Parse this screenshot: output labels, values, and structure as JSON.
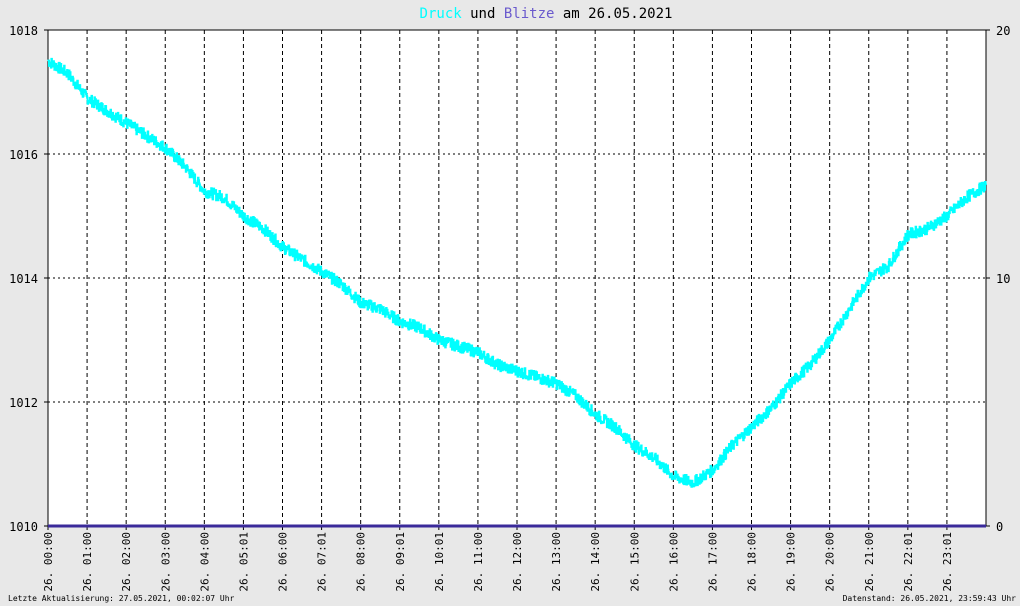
{
  "colors": {
    "background": "#e8e8e8",
    "plot_background": "#ffffff",
    "grid": "#000000",
    "pressure": "#00ffff",
    "lightning": "#3a2a9a",
    "lightning_title": "#6a5acd",
    "text": "#000000"
  },
  "title": {
    "part1": "Druck",
    "part2": " und ",
    "part3": "Blitze",
    "part4": " am 26.05.2021"
  },
  "footer": {
    "left": "Letzte Aktualisierung: 27.05.2021, 00:02:07 Uhr",
    "right": "Datenstand: 26.05.2021, 23:59:43 Uhr"
  },
  "chart_data": {
    "type": "line",
    "grid": true,
    "y_left": {
      "min": 1010,
      "max": 1018,
      "ticks": [
        "1010",
        "1012",
        "1014",
        "1016",
        "1018"
      ]
    },
    "y_right": {
      "min": 0,
      "max": 20,
      "ticks": [
        "0",
        "10",
        "20"
      ]
    },
    "x": {
      "min_hour": 0,
      "max_hour": 24,
      "ticks": [
        {
          "hour": 0.0,
          "label": "26. 00:00"
        },
        {
          "hour": 1.0,
          "label": "26. 01:00"
        },
        {
          "hour": 2.0,
          "label": "26. 02:00"
        },
        {
          "hour": 3.0,
          "label": "26. 03:00"
        },
        {
          "hour": 4.0,
          "label": "26. 04:00"
        },
        {
          "hour": 5.0,
          "label": "26. 05:01"
        },
        {
          "hour": 6.0,
          "label": "26. 06:00"
        },
        {
          "hour": 7.0,
          "label": "26. 07:01"
        },
        {
          "hour": 8.0,
          "label": "26. 08:00"
        },
        {
          "hour": 9.0,
          "label": "26. 09:01"
        },
        {
          "hour": 10.0,
          "label": "26. 10:01"
        },
        {
          "hour": 11.0,
          "label": "26. 11:00"
        },
        {
          "hour": 12.0,
          "label": "26. 12:00"
        },
        {
          "hour": 13.0,
          "label": "26. 13:00"
        },
        {
          "hour": 14.0,
          "label": "26. 14:00"
        },
        {
          "hour": 15.0,
          "label": "26. 15:00"
        },
        {
          "hour": 16.0,
          "label": "26. 16:00"
        },
        {
          "hour": 17.0,
          "label": "26. 17:00"
        },
        {
          "hour": 18.0,
          "label": "26. 18:00"
        },
        {
          "hour": 19.0,
          "label": "26. 19:00"
        },
        {
          "hour": 20.0,
          "label": "26. 20:00"
        },
        {
          "hour": 21.0,
          "label": "26. 21:00"
        },
        {
          "hour": 22.0,
          "label": "26. 22:01"
        },
        {
          "hour": 23.0,
          "label": "26. 23:01"
        }
      ]
    },
    "series": [
      {
        "name": "Druck",
        "axis": "left",
        "x": [
          0.0,
          0.5,
          1.0,
          1.5,
          2.0,
          2.5,
          3.0,
          3.5,
          4.0,
          4.5,
          5.0,
          5.5,
          6.0,
          6.5,
          7.0,
          7.5,
          8.0,
          8.5,
          9.0,
          9.5,
          10.0,
          10.5,
          11.0,
          11.5,
          12.0,
          12.5,
          13.0,
          13.5,
          14.0,
          14.5,
          15.0,
          15.5,
          16.0,
          16.5,
          17.0,
          17.5,
          18.0,
          18.5,
          19.0,
          19.5,
          20.0,
          20.5,
          21.0,
          21.5,
          22.0,
          22.5,
          23.0,
          23.5,
          24.0
        ],
        "values": [
          1017.5,
          1017.3,
          1016.9,
          1016.7,
          1016.5,
          1016.3,
          1016.1,
          1015.8,
          1015.4,
          1015.3,
          1015.0,
          1014.8,
          1014.5,
          1014.3,
          1014.1,
          1013.9,
          1013.6,
          1013.5,
          1013.3,
          1013.2,
          1013.0,
          1012.9,
          1012.8,
          1012.6,
          1012.5,
          1012.4,
          1012.3,
          1012.1,
          1011.8,
          1011.6,
          1011.3,
          1011.1,
          1010.8,
          1010.7,
          1010.9,
          1011.3,
          1011.6,
          1011.9,
          1012.3,
          1012.6,
          1013.0,
          1013.5,
          1014.0,
          1014.2,
          1014.7,
          1014.8,
          1015.0,
          1015.3,
          1015.5
        ]
      },
      {
        "name": "Blitze",
        "axis": "right",
        "x": [
          0,
          24
        ],
        "values": [
          0,
          0
        ]
      }
    ]
  }
}
